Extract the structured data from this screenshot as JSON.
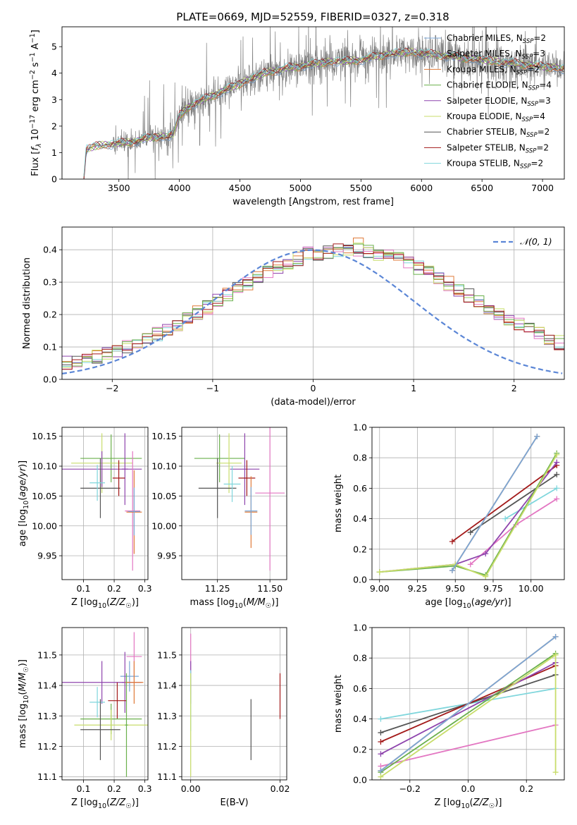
{
  "figure": {
    "title": "PLATE=0669, MJD=52559, FIBERID=0327, z=0.318"
  },
  "colors": {
    "chabrier_miles": "#7aa6d6",
    "salpeter_miles": "#7a7a7a",
    "kroupa_miles": "#e07b39",
    "chabrier_elodie": "#6ab04c",
    "salpeter_elodie": "#8e44ad",
    "kroupa_elodie": "#c8dd6b",
    "chabrier_stelib": "#555555",
    "salpeter_stelib": "#a31a1a",
    "kroupa_stelib": "#7fd6dc",
    "pink": "#e377c2",
    "normal_curve": "#5b86d6"
  },
  "chart_data": [
    {
      "id": "spectrum",
      "type": "line",
      "title": "PLATE=0669, MJD=52559, FIBERID=0327, z=0.318",
      "xlabel": "wavelength [Angstrom, rest frame]",
      "ylabel": "Flux [f_λ 10^-17 erg cm^-2 s^-1 A^-1]",
      "xlim": [
        3030,
        7180
      ],
      "ylim": [
        0,
        5.75
      ],
      "xticks": [
        3500,
        4000,
        4500,
        5000,
        5500,
        6000,
        6500,
        7000
      ],
      "yticks": [
        0,
        1,
        2,
        3,
        4,
        5
      ],
      "grid": false,
      "legend_position": "top-right",
      "legend": [
        {
          "label": "Chabrier MILES, N",
          "sub": "SSP",
          "suffix": "=2",
          "color": "#7aa6d6"
        },
        {
          "label": "Salpeter MILES, N",
          "sub": "SSP",
          "suffix": "=3",
          "color": "#7a7a7a"
        },
        {
          "label": "Kroupa MILES, N",
          "sub": "SSP",
          "suffix": "=2",
          "color": "#e07b39"
        },
        {
          "label": "Chabrier ELODIE, N",
          "sub": "SSP",
          "suffix": "=4",
          "color": "#6ab04c"
        },
        {
          "label": "Salpeter ELODIE, N",
          "sub": "SSP",
          "suffix": "=3",
          "color": "#8e44ad"
        },
        {
          "label": "Kroupa ELODIE, N",
          "sub": "SSP",
          "suffix": "=4",
          "color": "#c8dd6b"
        },
        {
          "label": "Chabrier STELIB, N",
          "sub": "SSP",
          "suffix": "=2",
          "color": "#555555"
        },
        {
          "label": "Salpeter STELIB, N",
          "sub": "SSP",
          "suffix": "=2",
          "color": "#a31a1a"
        },
        {
          "label": "Kroupa STELIB, N",
          "sub": "SSP",
          "suffix": "=2",
          "color": "#7fd6dc"
        }
      ],
      "continuum": {
        "x": [
          3210,
          3230,
          3300,
          3400,
          3500,
          3600,
          3700,
          3800,
          3900,
          3950,
          4000,
          4100,
          4200,
          4300,
          4400,
          4500,
          4600,
          4700,
          4800,
          4900,
          5000,
          5100,
          5200,
          5300,
          5400,
          5500,
          5600,
          5700,
          5800,
          5900,
          6000,
          6100,
          6200,
          6300,
          6400,
          6500,
          6600,
          6700,
          6800,
          6900,
          7000,
          7100,
          7180
        ],
        "y": [
          0,
          1.1,
          1.25,
          1.3,
          1.35,
          1.4,
          1.5,
          1.6,
          1.6,
          1.7,
          2.4,
          2.8,
          3.0,
          3.2,
          3.4,
          3.6,
          3.8,
          4.0,
          4.1,
          4.2,
          4.25,
          4.35,
          4.4,
          4.45,
          4.45,
          4.5,
          4.6,
          4.7,
          4.75,
          4.8,
          4.75,
          4.7,
          4.65,
          4.6,
          4.55,
          4.5,
          4.45,
          4.4,
          4.35,
          4.3,
          4.25,
          4.2,
          4.15
        ]
      }
    },
    {
      "id": "residuals",
      "type": "histogram",
      "xlabel": "(data-model)/error",
      "ylabel": "Normed distribution",
      "xlim": [
        -2.5,
        2.5
      ],
      "ylim": [
        0,
        0.47
      ],
      "xticks": [
        -2,
        -1,
        0,
        1,
        2
      ],
      "yticks": [
        0.0,
        0.1,
        0.2,
        0.3,
        0.4
      ],
      "grid": true,
      "legend_position": "top-right",
      "legend": [
        {
          "label": "𝒩(0, 1)",
          "color": "#5b86d6",
          "dashed": true
        }
      ],
      "bin_width": 0.1,
      "normal": {
        "mean": 0,
        "sigma": 1
      }
    },
    {
      "id": "age_vs_Z",
      "type": "errorbar",
      "xlabel": "Z [log10(Z/Z☉)]",
      "ylabel": "age [log10(age/yr)]",
      "xlim": [
        0.03,
        0.31
      ],
      "ylim": [
        9.91,
        10.165
      ],
      "xticks": [
        0.1,
        0.2,
        0.3
      ],
      "yticks": [
        9.95,
        10.0,
        10.05,
        10.1,
        10.15
      ],
      "grid": true,
      "points": [
        {
          "x": 0.19,
          "y": 10.113,
          "xerr": 0.1,
          "yerr": 0.04,
          "color": "#6ab04c"
        },
        {
          "x": 0.16,
          "y": 10.105,
          "xerr": 0.1,
          "yerr": 0.05,
          "color": "#c8dd6b"
        },
        {
          "x": 0.16,
          "y": 10.095,
          "xerr": 0.13,
          "yerr": 0.03,
          "color": "#8e44ad"
        },
        {
          "x": 0.235,
          "y": 10.095,
          "xerr": 0.01,
          "yerr": 0.06,
          "color": "#8e44ad"
        },
        {
          "x": 0.155,
          "y": 10.063,
          "xerr": 0.065,
          "yerr": 0.05,
          "color": "#555555"
        },
        {
          "x": 0.145,
          "y": 10.072,
          "xerr": 0.025,
          "yerr": 0.03,
          "color": "#7fd6dc"
        },
        {
          "x": 0.215,
          "y": 10.08,
          "xerr": 0.02,
          "yerr": 0.03,
          "color": "#a31a1a"
        },
        {
          "x": 0.26,
          "y": 10.025,
          "xerr": 0.025,
          "yerr": 0.1,
          "color": "#e377c2"
        },
        {
          "x": 0.265,
          "y": 10.023,
          "xerr": 0.025,
          "yerr": 0.07,
          "color": "#e07b39"
        },
        {
          "x": 0.265,
          "y": 10.024,
          "xerr": 0.02,
          "yerr": 0.04,
          "color": "#7aa6d6"
        }
      ]
    },
    {
      "id": "age_vs_mass",
      "type": "errorbar",
      "xlabel": "mass [log10(M/M☉)]",
      "ylabel": "",
      "xlim": [
        11.08,
        11.58
      ],
      "ylim": [
        9.91,
        10.165
      ],
      "xticks": [
        11.25,
        11.5
      ],
      "yticks": [
        9.95,
        10.0,
        10.05,
        10.1,
        10.15
      ],
      "grid": true,
      "points": [
        {
          "x": 11.26,
          "y": 10.113,
          "xerr": 0.12,
          "yerr": 0.04,
          "color": "#6ab04c"
        },
        {
          "x": 11.305,
          "y": 10.105,
          "xerr": 0.06,
          "yerr": 0.05,
          "color": "#c8dd6b"
        },
        {
          "x": 11.38,
          "y": 10.095,
          "xerr": 0.07,
          "yerr": 0.06,
          "color": "#8e44ad"
        },
        {
          "x": 11.25,
          "y": 10.063,
          "xerr": 0.09,
          "yerr": 0.05,
          "color": "#555555"
        },
        {
          "x": 11.32,
          "y": 10.07,
          "xerr": 0.04,
          "yerr": 0.03,
          "color": "#7fd6dc"
        },
        {
          "x": 11.39,
          "y": 10.08,
          "xerr": 0.04,
          "yerr": 0.03,
          "color": "#a31a1a"
        },
        {
          "x": 11.5,
          "y": 10.055,
          "xerr": 0.07,
          "yerr": 0.13,
          "color": "#e377c2"
        },
        {
          "x": 11.41,
          "y": 10.023,
          "xerr": 0.03,
          "yerr": 0.06,
          "color": "#e07b39"
        },
        {
          "x": 11.41,
          "y": 10.025,
          "xerr": 0.03,
          "yerr": 0.04,
          "color": "#7aa6d6"
        }
      ]
    },
    {
      "id": "weight_vs_age",
      "type": "line",
      "xlabel": "age [log10(age/yr)]",
      "ylabel": "mass weight",
      "xlim": [
        8.95,
        10.22
      ],
      "ylim": [
        0,
        1.0
      ],
      "xticks": [
        9.0,
        9.25,
        9.5,
        9.75,
        10.0
      ],
      "yticks": [
        0.0,
        0.2,
        0.4,
        0.6,
        0.8,
        1.0
      ],
      "grid": true,
      "series": [
        {
          "color": "#a31a1a",
          "x": [
            9.48,
            10.17
          ],
          "y": [
            0.25,
            0.75
          ]
        },
        {
          "color": "#555555",
          "x": [
            9.6,
            10.17
          ],
          "y": [
            0.31,
            0.69
          ]
        },
        {
          "color": "#7fd6dc",
          "x": [
            9.83,
            10.17
          ],
          "y": [
            0.4,
            0.6
          ]
        },
        {
          "color": "#e377c2",
          "x": [
            9.6,
            9.9,
            10.17
          ],
          "y": [
            0.1,
            0.36,
            0.53
          ]
        },
        {
          "color": "#8e44ad",
          "x": [
            9.0,
            9.5,
            9.7,
            10.17
          ],
          "y": [
            0.05,
            0.1,
            0.17,
            0.77
          ]
        },
        {
          "color": "#6ab04c",
          "x": [
            9.0,
            9.5,
            9.7,
            10.17
          ],
          "y": [
            0.05,
            0.09,
            0.03,
            0.83
          ]
        },
        {
          "color": "#c8dd6b",
          "x": [
            9.0,
            9.5,
            9.7,
            10.17
          ],
          "y": [
            0.05,
            0.1,
            0.02,
            0.82
          ]
        },
        {
          "color": "#e07b39",
          "x": [
            9.48,
            10.04
          ],
          "y": [
            0.06,
            0.94
          ]
        },
        {
          "color": "#7aa6d6",
          "x": [
            9.48,
            10.04
          ],
          "y": [
            0.06,
            0.94
          ]
        }
      ]
    },
    {
      "id": "mass_vs_Z",
      "type": "errorbar",
      "xlabel": "Z [log10(Z/Z☉)]",
      "ylabel": "mass [log10(M/M☉)]",
      "xlim": [
        0.03,
        0.31
      ],
      "ylim": [
        11.09,
        11.59
      ],
      "xticks": [
        0.1,
        0.2,
        0.3
      ],
      "yticks": [
        11.1,
        11.2,
        11.3,
        11.4,
        11.5
      ],
      "grid": true,
      "points": [
        {
          "x": 0.265,
          "y": 11.495,
          "xerr": 0.025,
          "yerr": 0.08,
          "color": "#e377c2"
        },
        {
          "x": 0.25,
          "y": 11.43,
          "xerr": 0.03,
          "yerr": 0.05,
          "color": "#7aa6d6"
        },
        {
          "x": 0.16,
          "y": 11.41,
          "xerr": 0.13,
          "yerr": 0.07,
          "color": "#8e44ad"
        },
        {
          "x": 0.235,
          "y": 11.41,
          "xerr": 0.01,
          "yerr": 0.1,
          "color": "#8e44ad"
        },
        {
          "x": 0.265,
          "y": 11.41,
          "xerr": 0.03,
          "yerr": 0.07,
          "color": "#e07b39"
        },
        {
          "x": 0.21,
          "y": 11.35,
          "xerr": 0.03,
          "yerr": 0.06,
          "color": "#a31a1a"
        },
        {
          "x": 0.145,
          "y": 11.345,
          "xerr": 0.025,
          "yerr": 0.05,
          "color": "#7fd6dc"
        },
        {
          "x": 0.19,
          "y": 11.29,
          "xerr": 0.1,
          "yerr": 0.05,
          "color": "#6ab04c"
        },
        {
          "x": 0.19,
          "y": 11.27,
          "xerr": 0.12,
          "yerr": 0.05,
          "color": "#c8dd6b"
        },
        {
          "x": 0.24,
          "y": 11.27,
          "xerr": 0.005,
          "yerr": 0.17,
          "color": "#6ab04c"
        },
        {
          "x": 0.155,
          "y": 11.255,
          "xerr": 0.065,
          "yerr": 0.1,
          "color": "#555555"
        }
      ]
    },
    {
      "id": "mass_vs_EBV",
      "type": "errorbar",
      "xlabel": "E(B-V)",
      "ylabel": "",
      "xlim": [
        -0.002,
        0.0215
      ],
      "ylim": [
        11.09,
        11.59
      ],
      "xticks": [
        0.0,
        0.02
      ],
      "yticks": [
        11.1,
        11.2,
        11.3,
        11.4,
        11.5
      ],
      "grid": true,
      "points": [
        {
          "x": 0.0,
          "y": 11.47,
          "xerr": 0,
          "yerr": 0.1,
          "color": "#e377c2"
        },
        {
          "x": 0.0,
          "y": 11.41,
          "xerr": 0,
          "yerr": 0.07,
          "color": "#8e44ad"
        },
        {
          "x": 0.0,
          "y": 11.35,
          "xerr": 0,
          "yerr": 0.1,
          "color": "#7fd6dc"
        },
        {
          "x": 0.0,
          "y": 11.27,
          "xerr": 0,
          "yerr": 0.17,
          "color": "#c8dd6b"
        },
        {
          "x": 0.0135,
          "y": 11.255,
          "xerr": 0,
          "yerr": 0.1,
          "color": "#555555"
        },
        {
          "x": 0.02,
          "y": 11.365,
          "xerr": 0,
          "yerr": 0.075,
          "color": "#a31a1a"
        }
      ]
    },
    {
      "id": "weight_vs_Z",
      "type": "line",
      "xlabel": "Z [log10(Z/Z☉)]",
      "ylabel": "mass weight",
      "xlim": [
        -0.33,
        0.33
      ],
      "ylim": [
        0,
        1.0
      ],
      "xticks": [
        -0.2,
        0.0,
        0.2
      ],
      "yticks": [
        0.0,
        0.2,
        0.4,
        0.6,
        0.8,
        1.0
      ],
      "grid": true,
      "series": [
        {
          "color": "#7fd6dc",
          "x": [
            -0.3,
            0.3
          ],
          "y": [
            0.4,
            0.6
          ]
        },
        {
          "color": "#555555",
          "x": [
            -0.3,
            0.3
          ],
          "y": [
            0.31,
            0.69
          ]
        },
        {
          "color": "#a31a1a",
          "x": [
            -0.3,
            0.3
          ],
          "y": [
            0.25,
            0.75
          ]
        },
        {
          "color": "#8e44ad",
          "x": [
            -0.3,
            0.3
          ],
          "y": [
            0.17,
            0.77
          ]
        },
        {
          "color": "#e377c2",
          "x": [
            -0.3,
            0.3
          ],
          "y": [
            0.09,
            0.36
          ]
        },
        {
          "color": "#6ab04c",
          "x": [
            -0.3,
            0.3
          ],
          "y": [
            0.05,
            0.83
          ]
        },
        {
          "color": "#c8dd6b",
          "x": [
            -0.3,
            0.3
          ],
          "y": [
            0.02,
            0.82
          ]
        },
        {
          "color": "#e07b39",
          "x": [
            -0.3,
            0.3
          ],
          "y": [
            0.06,
            0.94
          ]
        },
        {
          "color": "#7aa6d6",
          "x": [
            -0.3,
            0.3
          ],
          "y": [
            0.06,
            0.94
          ]
        },
        {
          "color": "#c8dd6b",
          "x": [
            0.3,
            0.3
          ],
          "y": [
            0.05,
            0.82
          ]
        }
      ]
    }
  ]
}
